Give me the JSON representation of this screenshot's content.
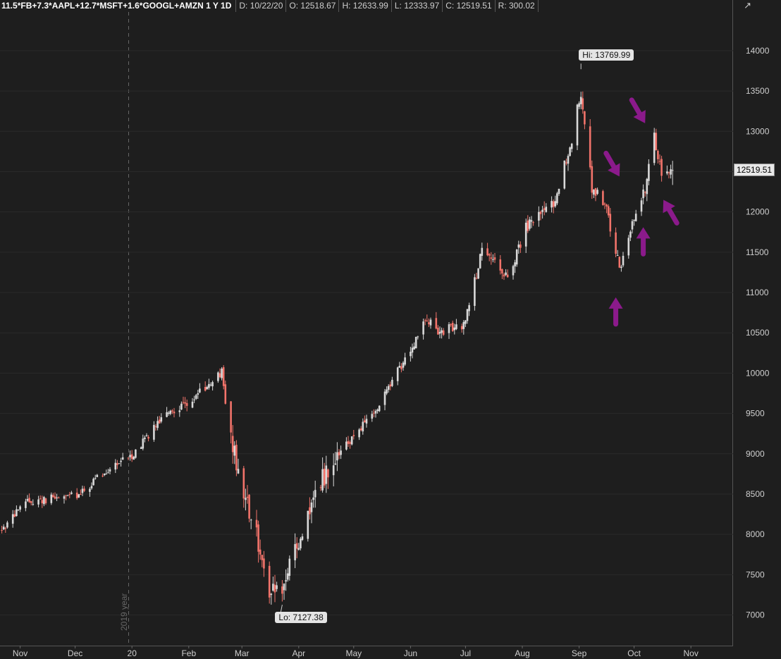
{
  "header": {
    "title": "11.5*FB+7.3*AAPL+12.7*MSFT+1.6*GOOGL+AMZN 1 Y 1D",
    "stats": [
      {
        "label": "D: 10/22/20"
      },
      {
        "label": "O: 12518.67"
      },
      {
        "label": "H: 12633.99"
      },
      {
        "label": "L: 12333.97"
      },
      {
        "label": "C: 12519.51"
      },
      {
        "label": "R: 300.02"
      }
    ],
    "corner_icon": "chart-style-icon"
  },
  "annotations": {
    "hi_label": "Hi: 13769.99",
    "lo_label": "Lo: 7127.38",
    "last_price": "12519.51",
    "year_marker": "2019 year",
    "arrow_color": "#8b1a8b"
  },
  "chart_data": {
    "type": "candlestick",
    "title": "11.5*FB+7.3*AAPL+12.7*MSFT+1.6*GOOGL+AMZN 1 Y 1D",
    "x_tick_labels": [
      "Nov",
      "Dec",
      "20",
      "Feb",
      "Mar",
      "Apr",
      "May",
      "Jun",
      "Jul",
      "Aug",
      "Sep",
      "Oct",
      "Nov"
    ],
    "y_tick_labels": [
      7000,
      7500,
      8000,
      8500,
      9000,
      9500,
      10000,
      10500,
      11000,
      11500,
      12000,
      12500,
      13000,
      13500,
      14000
    ],
    "ylim": [
      6620,
      14480
    ],
    "grid": true,
    "up_color": "#d9d9d9",
    "down_color": "#f2736a",
    "last": {
      "date": "10/22/20",
      "open": 12518.67,
      "high": 12633.99,
      "low": 12333.97,
      "close": 12519.51,
      "range": 300.02
    },
    "high": 13769.99,
    "low": 7127.38,
    "anchors": [
      [
        "2019-10-22",
        8050
      ],
      [
        "2019-11-04",
        8400
      ],
      [
        "2019-11-20",
        8450
      ],
      [
        "2019-12-04",
        8500
      ],
      [
        "2019-12-18",
        8800
      ],
      [
        "2020-01-02",
        9000
      ],
      [
        "2020-01-17",
        9450
      ],
      [
        "2020-02-04",
        9700
      ],
      [
        "2020-02-19",
        10000
      ],
      [
        "2020-02-21",
        9650
      ],
      [
        "2020-02-28",
        8700
      ],
      [
        "2020-03-09",
        8000
      ],
      [
        "2020-03-16",
        7300
      ],
      [
        "2020-03-23",
        7350
      ],
      [
        "2020-04-01",
        7900
      ],
      [
        "2020-04-14",
        8700
      ],
      [
        "2020-04-30",
        9200
      ],
      [
        "2020-05-15",
        9600
      ],
      [
        "2020-06-01",
        10300
      ],
      [
        "2020-06-10",
        10700
      ],
      [
        "2020-06-15",
        10500
      ],
      [
        "2020-06-30",
        10600
      ],
      [
        "2020-07-10",
        11500
      ],
      [
        "2020-07-24",
        11200
      ],
      [
        "2020-08-03",
        11800
      ],
      [
        "2020-08-18",
        12100
      ],
      [
        "2020-08-28",
        12900
      ],
      [
        "2020-09-02",
        13500
      ],
      [
        "2020-09-08",
        12300
      ],
      [
        "2020-09-15",
        12100
      ],
      [
        "2020-09-23",
        11300
      ],
      [
        "2020-10-01",
        11950
      ],
      [
        "2020-10-07",
        12300
      ],
      [
        "2020-10-12",
        12950
      ],
      [
        "2020-10-16",
        12450
      ],
      [
        "2020-10-22",
        12519.51
      ]
    ],
    "arrows": [
      {
        "date": "2020-09-21",
        "value": 10940,
        "dir": "up"
      },
      {
        "date": "2020-09-23",
        "value": 12440,
        "dir": "down-right"
      },
      {
        "date": "2020-10-06",
        "value": 11810,
        "dir": "up"
      },
      {
        "date": "2020-10-07",
        "value": 13100,
        "dir": "down-right"
      },
      {
        "date": "2020-10-17",
        "value": 12150,
        "dir": "up-left"
      }
    ]
  }
}
